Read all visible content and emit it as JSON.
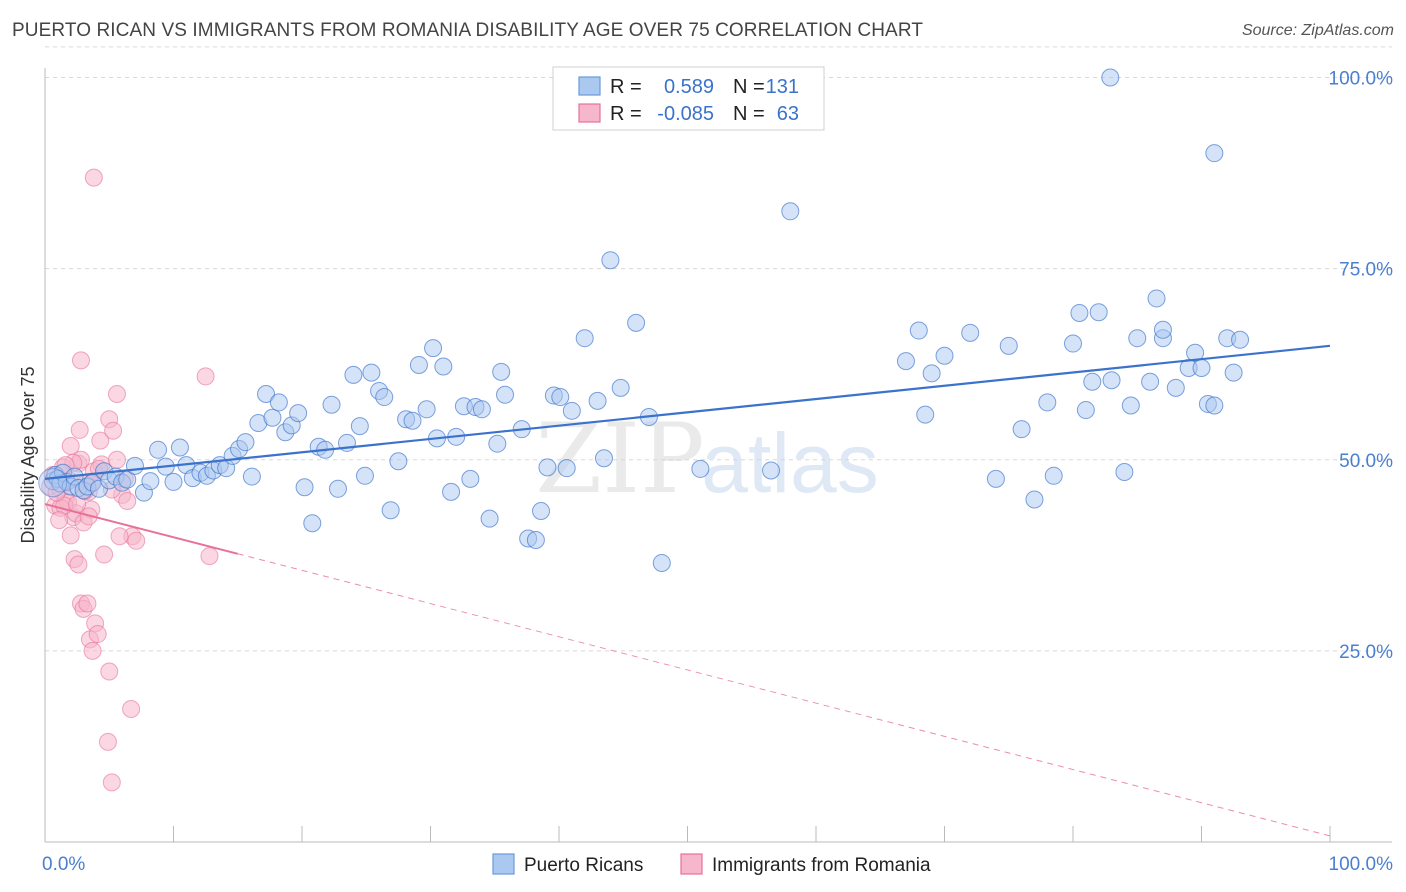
{
  "header": {
    "title": "PUERTO RICAN VS IMMIGRANTS FROM ROMANIA DISABILITY AGE OVER 75 CORRELATION CHART",
    "source": "Source: ZipAtlas.com"
  },
  "stats": [
    {
      "r_label": "R =",
      "r_value": "0.589",
      "n_label": "N =",
      "n_value": "131"
    },
    {
      "r_label": "R =",
      "r_value": "-0.085",
      "n_label": "N =",
      "n_value": "63"
    }
  ],
  "watermark": {
    "zip": "ZIP",
    "atlas": "atlas"
  },
  "colors": {
    "blue": "#3a72cc",
    "blue_fill": "#aac8f0",
    "pink": "#e8719a",
    "pink_fill": "#f6b6cb",
    "grid": "#d8d8d8"
  },
  "chart_data": {
    "type": "scatter",
    "title": "PUERTO RICAN VS IMMIGRANTS FROM ROMANIA DISABILITY AGE OVER 75 CORRELATION CHART",
    "xlabel": "",
    "ylabel": "Disability Age Over 75",
    "xlim": [
      0,
      100
    ],
    "ylim": [
      0,
      104
    ],
    "y_ticks": [
      {
        "value": 25,
        "label": "25.0%"
      },
      {
        "value": 50,
        "label": "50.0%"
      },
      {
        "value": 75,
        "label": "75.0%"
      },
      {
        "value": 100,
        "label": "100.0%"
      }
    ],
    "x_ticks": [
      {
        "value": 0,
        "label": "0.0%"
      },
      {
        "value": 100,
        "label": "100.0%"
      }
    ],
    "grid": "horizontal dashed",
    "legend_position": "bottom-center",
    "series": [
      {
        "name": "Puerto Ricans",
        "color": "#3a72cc",
        "trend": {
          "x0": 0,
          "y0": 47.5,
          "x1": 100,
          "y1": 64.9,
          "style": "solid"
        },
        "points": [
          [
            0.6,
            47.2
          ],
          [
            0.8,
            48.0
          ],
          [
            1.0,
            47.5
          ],
          [
            1.2,
            46.9
          ],
          [
            1.4,
            48.3
          ],
          [
            1.7,
            47.1
          ],
          [
            2.0,
            46.5
          ],
          [
            2.3,
            47.8
          ],
          [
            2.6,
            46.3
          ],
          [
            3.0,
            46.0
          ],
          [
            3.3,
            46.5
          ],
          [
            3.7,
            47.0
          ],
          [
            4.2,
            46.2
          ],
          [
            4.6,
            48.5
          ],
          [
            5.0,
            47.3
          ],
          [
            5.5,
            47.8
          ],
          [
            6.0,
            47.0
          ],
          [
            6.4,
            47.4
          ],
          [
            7.0,
            49.2
          ],
          [
            7.7,
            45.7
          ],
          [
            8.2,
            47.2
          ],
          [
            8.8,
            51.3
          ],
          [
            9.4,
            49.1
          ],
          [
            10.0,
            47.1
          ],
          [
            10.5,
            51.6
          ],
          [
            11.0,
            49.3
          ],
          [
            11.5,
            47.6
          ],
          [
            12.1,
            48.3
          ],
          [
            12.6,
            47.9
          ],
          [
            13.1,
            48.6
          ],
          [
            13.6,
            49.3
          ],
          [
            14.1,
            48.9
          ],
          [
            14.6,
            50.5
          ],
          [
            15.1,
            51.4
          ],
          [
            15.6,
            52.3
          ],
          [
            16.1,
            47.8
          ],
          [
            16.6,
            54.8
          ],
          [
            17.2,
            58.6
          ],
          [
            17.7,
            55.5
          ],
          [
            18.2,
            57.5
          ],
          [
            18.7,
            53.6
          ],
          [
            19.2,
            54.5
          ],
          [
            19.7,
            56.1
          ],
          [
            20.2,
            46.4
          ],
          [
            20.8,
            41.7
          ],
          [
            21.3,
            51.7
          ],
          [
            21.8,
            51.3
          ],
          [
            22.3,
            57.2
          ],
          [
            22.8,
            46.2
          ],
          [
            23.5,
            52.2
          ],
          [
            24.0,
            61.1
          ],
          [
            24.5,
            54.4
          ],
          [
            24.9,
            47.9
          ],
          [
            25.4,
            61.4
          ],
          [
            26.0,
            59.0
          ],
          [
            26.4,
            58.2
          ],
          [
            26.9,
            43.4
          ],
          [
            27.5,
            49.8
          ],
          [
            28.1,
            55.3
          ],
          [
            28.6,
            55.1
          ],
          [
            29.1,
            62.4
          ],
          [
            29.7,
            56.6
          ],
          [
            30.2,
            64.6
          ],
          [
            30.5,
            52.8
          ],
          [
            31.0,
            62.2
          ],
          [
            31.6,
            45.8
          ],
          [
            32.0,
            53.0
          ],
          [
            32.6,
            57.0
          ],
          [
            33.1,
            47.5
          ],
          [
            33.5,
            56.9
          ],
          [
            34.0,
            56.6
          ],
          [
            34.6,
            42.3
          ],
          [
            35.2,
            52.1
          ],
          [
            35.8,
            58.5
          ],
          [
            35.5,
            61.5
          ],
          [
            37.1,
            54.0
          ],
          [
            37.6,
            39.7
          ],
          [
            38.2,
            39.5
          ],
          [
            38.6,
            43.3
          ],
          [
            39.1,
            49.0
          ],
          [
            39.6,
            58.4
          ],
          [
            40.1,
            58.2
          ],
          [
            40.6,
            48.9
          ],
          [
            41.0,
            56.4
          ],
          [
            42.0,
            65.9
          ],
          [
            43.0,
            57.7
          ],
          [
            43.5,
            50.2
          ],
          [
            44.0,
            76.1
          ],
          [
            44.8,
            59.4
          ],
          [
            46.0,
            67.9
          ],
          [
            47.0,
            55.6
          ],
          [
            48.0,
            36.5
          ],
          [
            51.0,
            48.8
          ],
          [
            58.0,
            82.5
          ],
          [
            67.0,
            62.9
          ],
          [
            68.0,
            66.9
          ],
          [
            68.5,
            55.9
          ],
          [
            69.0,
            61.3
          ],
          [
            70.0,
            63.6
          ],
          [
            72.0,
            66.6
          ],
          [
            74.0,
            47.5
          ],
          [
            75.0,
            64.9
          ],
          [
            76.0,
            54.0
          ],
          [
            77.0,
            44.8
          ],
          [
            78.0,
            57.5
          ],
          [
            78.5,
            47.9
          ],
          [
            80.0,
            65.2
          ],
          [
            80.5,
            69.2
          ],
          [
            81.0,
            56.5
          ],
          [
            81.5,
            60.2
          ],
          [
            82.0,
            69.3
          ],
          [
            83.0,
            60.4
          ],
          [
            84.0,
            48.4
          ],
          [
            84.5,
            57.1
          ],
          [
            85.0,
            65.9
          ],
          [
            86.0,
            60.2
          ],
          [
            86.5,
            71.1
          ],
          [
            87.0,
            65.9
          ],
          [
            88.0,
            59.4
          ],
          [
            89.0,
            62.0
          ],
          [
            89.5,
            64.0
          ],
          [
            90.0,
            62.0
          ],
          [
            90.5,
            57.3
          ],
          [
            91.0,
            57.1
          ],
          [
            92.0,
            65.9
          ],
          [
            92.5,
            61.4
          ],
          [
            93.0,
            65.7
          ],
          [
            82.9,
            100.0
          ],
          [
            91.0,
            90.1
          ],
          [
            87.0,
            67.0
          ],
          [
            56.5,
            48.6
          ]
        ]
      },
      {
        "name": "Immigrants from Romania",
        "color": "#e8719a",
        "trend": {
          "x0": 0,
          "y0": 44.2,
          "x1": 15,
          "y1": 37.7,
          "style": "solid",
          "extend_to": {
            "x": 100,
            "y": 0.8
          },
          "extend_style": "dashed"
        },
        "points": [
          [
            0.4,
            46.5
          ],
          [
            0.6,
            48.0
          ],
          [
            0.8,
            44.0
          ],
          [
            1.0,
            47.6
          ],
          [
            1.2,
            46.2
          ],
          [
            1.4,
            49.0
          ],
          [
            1.6,
            45.0
          ],
          [
            1.8,
            44.4
          ],
          [
            2.0,
            51.8
          ],
          [
            2.2,
            42.5
          ],
          [
            2.4,
            43.0
          ],
          [
            2.6,
            49.5
          ],
          [
            2.8,
            50.0
          ],
          [
            3.0,
            41.8
          ],
          [
            3.2,
            47.0
          ],
          [
            3.4,
            45.8
          ],
          [
            3.6,
            43.5
          ],
          [
            3.8,
            48.5
          ],
          [
            1.2,
            43.7
          ],
          [
            1.5,
            44.0
          ],
          [
            2.0,
            40.1
          ],
          [
            2.3,
            37.0
          ],
          [
            2.6,
            36.3
          ],
          [
            2.8,
            31.2
          ],
          [
            3.0,
            30.5
          ],
          [
            3.3,
            31.2
          ],
          [
            3.5,
            26.5
          ],
          [
            3.7,
            25.0
          ],
          [
            3.9,
            28.6
          ],
          [
            4.1,
            27.2
          ],
          [
            4.3,
            52.5
          ],
          [
            4.6,
            37.6
          ],
          [
            5.0,
            55.3
          ],
          [
            5.3,
            53.8
          ],
          [
            5.6,
            58.6
          ],
          [
            6.0,
            45.4
          ],
          [
            6.4,
            44.6
          ],
          [
            6.8,
            40.0
          ],
          [
            7.1,
            39.4
          ],
          [
            2.8,
            63.0
          ],
          [
            3.8,
            86.9
          ],
          [
            12.5,
            60.9
          ],
          [
            12.8,
            37.4
          ],
          [
            2.2,
            49.6
          ],
          [
            2.5,
            44.2
          ],
          [
            3.1,
            45.9
          ],
          [
            3.4,
            42.6
          ],
          [
            1.9,
            47.3
          ],
          [
            4.4,
            49.4
          ],
          [
            5.2,
            46.1
          ],
          [
            5.6,
            50.0
          ],
          [
            6.2,
            47.5
          ],
          [
            2.7,
            53.9
          ],
          [
            3.6,
            46.9
          ],
          [
            1.6,
            49.3
          ],
          [
            0.9,
            45.7
          ],
          [
            1.1,
            42.1
          ],
          [
            4.2,
            48.8
          ],
          [
            5.0,
            22.3
          ],
          [
            6.7,
            17.4
          ],
          [
            4.9,
            13.1
          ],
          [
            5.2,
            7.8
          ],
          [
            5.8,
            40.0
          ]
        ]
      }
    ]
  },
  "legend": {
    "items": [
      {
        "label": "Puerto Ricans"
      },
      {
        "label": "Immigrants from Romania"
      }
    ]
  }
}
